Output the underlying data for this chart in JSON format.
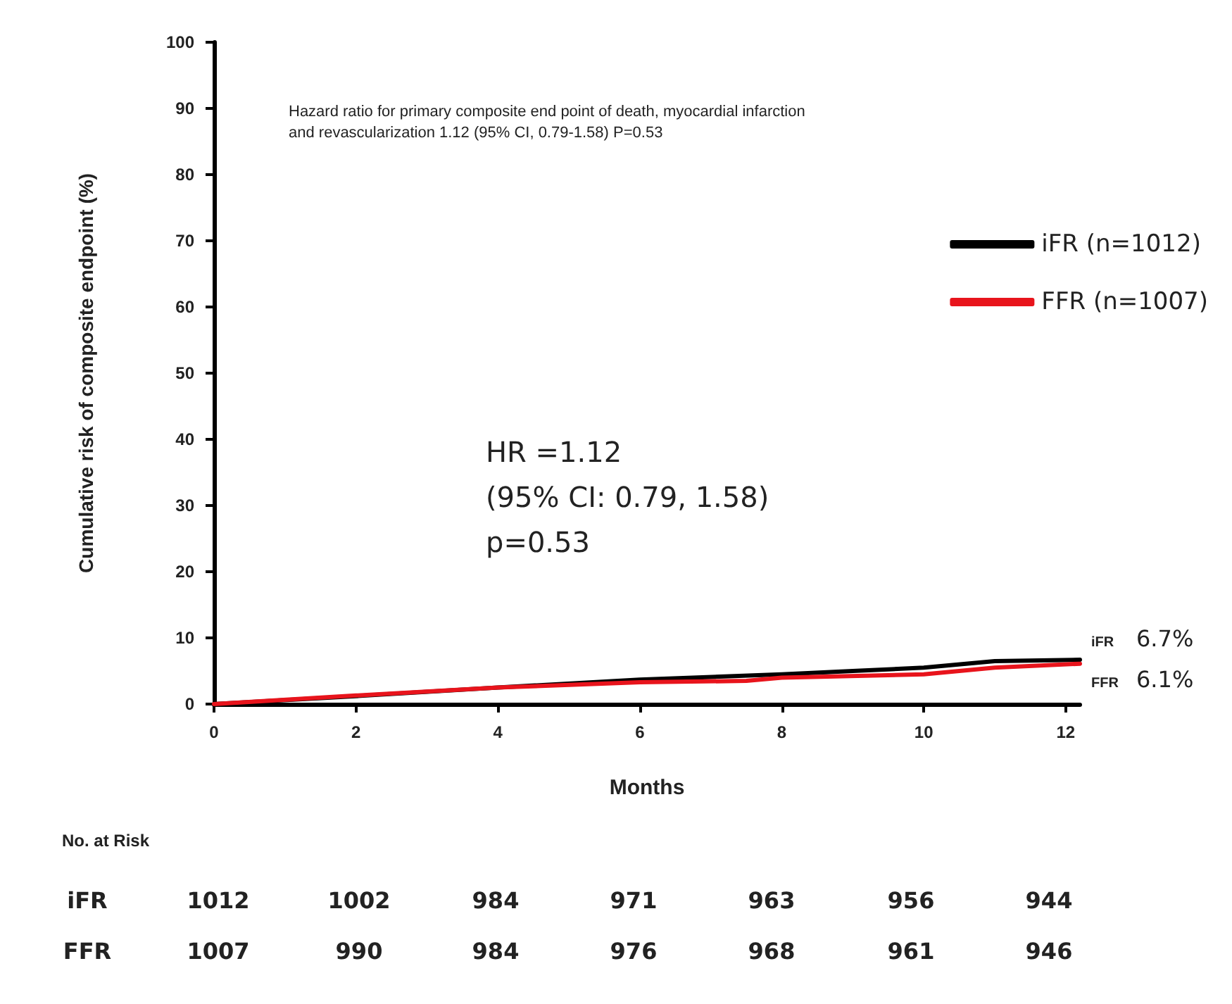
{
  "chart_data": {
    "type": "line",
    "xlabel": "Months",
    "ylabel": "Cumulative risk of composite endpoint (%)",
    "x": [
      0,
      2,
      4,
      6,
      8,
      9,
      10,
      11,
      12.2
    ],
    "series": [
      {
        "name": "iFR (n=1012)",
        "color": "#000000",
        "values": [
          0,
          1.2,
          2.5,
          3.7,
          4.5,
          5.0,
          5.5,
          6.5,
          6.7
        ]
      },
      {
        "name": "FFR (n=1007)",
        "color": "#e8141c",
        "x": [
          0,
          2,
          4,
          6,
          7.5,
          8,
          10,
          11,
          12.2
        ],
        "values": [
          0,
          1.3,
          2.5,
          3.3,
          3.5,
          4.0,
          4.5,
          5.5,
          6.1
        ]
      }
    ],
    "xlim": [
      0,
      12.2
    ],
    "xticks": [
      0,
      2,
      4,
      6,
      8,
      10,
      12
    ],
    "ylim": [
      0,
      100
    ],
    "yticks": [
      0,
      10,
      20,
      30,
      40,
      50,
      60,
      70,
      80,
      90,
      100
    ],
    "grid": false,
    "legend": "top right",
    "marker": "none",
    "line_style": "solid",
    "annotations": [
      "Hazard ratio for primary composite end point of death, myocardial infarction\nand revascularization 1.12 (95% CI, 0.79-1.58) P=0.53",
      "HR =1.12\n(95% CI: 0.79, 1.58)\np=0.53",
      "iFR",
      "6.7%",
      "FFR",
      "6.1%",
      "No. at Risk",
      "iFR",
      "1012",
      "1002",
      "984",
      "971",
      "963",
      "956",
      "944",
      "FFR",
      "1007",
      "990",
      "984",
      "976",
      "968",
      "961",
      "946"
    ]
  }
}
